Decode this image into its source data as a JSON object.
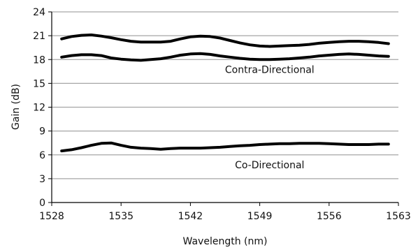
{
  "chart_data": {
    "type": "line",
    "title": "",
    "xlabel": "Wavelength (nm)",
    "ylabel": "Gain (dB)",
    "xlim": [
      1528,
      1563
    ],
    "ylim": [
      0,
      24
    ],
    "xticks": [
      1528,
      1535,
      1542,
      1549,
      1556,
      1563
    ],
    "yticks": [
      0,
      3,
      6,
      9,
      12,
      15,
      18,
      21,
      24
    ],
    "grid": "horizontal",
    "legend": "none",
    "colors": {
      "series": "#000000",
      "grid": "#a6a6a6",
      "axis": "#000000"
    },
    "annotations": [
      {
        "text": "Contra-Directional",
        "x": 1550,
        "y": 16.3
      },
      {
        "text": "Co-Directional",
        "x": 1550,
        "y": 4.3
      }
    ],
    "series": [
      {
        "x": [
          1529.0,
          1530.0,
          1531.0,
          1532.0,
          1533.0,
          1534.0,
          1535.0,
          1536.0,
          1537.0,
          1538.0,
          1539.0,
          1540.0,
          1541.0,
          1542.0,
          1543.0,
          1544.0,
          1545.0,
          1546.0,
          1547.0,
          1548.0,
          1549.0,
          1550.0,
          1551.0,
          1552.0,
          1553.0,
          1554.0,
          1555.0,
          1556.0,
          1557.0,
          1558.0,
          1559.0,
          1560.0,
          1561.0,
          1562.0
        ],
        "y": [
          20.6,
          20.9,
          21.05,
          21.1,
          20.95,
          20.75,
          20.5,
          20.3,
          20.2,
          20.2,
          20.2,
          20.3,
          20.6,
          20.85,
          20.95,
          20.9,
          20.7,
          20.4,
          20.1,
          19.85,
          19.7,
          19.65,
          19.7,
          19.75,
          19.8,
          19.9,
          20.05,
          20.15,
          20.25,
          20.3,
          20.3,
          20.25,
          20.15,
          20.0
        ]
      },
      {
        "x": [
          1529.0,
          1530.0,
          1531.0,
          1532.0,
          1533.0,
          1534.0,
          1535.0,
          1536.0,
          1537.0,
          1538.0,
          1539.0,
          1540.0,
          1541.0,
          1542.0,
          1543.0,
          1544.0,
          1545.0,
          1546.0,
          1547.0,
          1548.0,
          1549.0,
          1550.0,
          1551.0,
          1552.0,
          1553.0,
          1554.0,
          1555.0,
          1556.0,
          1557.0,
          1558.0,
          1559.0,
          1560.0,
          1561.0,
          1562.0
        ],
        "y": [
          18.3,
          18.5,
          18.6,
          18.6,
          18.5,
          18.2,
          18.05,
          17.95,
          17.9,
          18.0,
          18.1,
          18.3,
          18.55,
          18.7,
          18.75,
          18.65,
          18.45,
          18.3,
          18.15,
          18.05,
          18.0,
          18.0,
          18.05,
          18.1,
          18.2,
          18.3,
          18.45,
          18.55,
          18.65,
          18.7,
          18.65,
          18.55,
          18.45,
          18.4
        ]
      },
      {
        "x": [
          1529.0,
          1530.0,
          1531.0,
          1532.0,
          1533.0,
          1534.0,
          1535.0,
          1536.0,
          1537.0,
          1538.0,
          1539.0,
          1540.0,
          1541.0,
          1542.0,
          1543.0,
          1544.0,
          1545.0,
          1546.0,
          1547.0,
          1548.0,
          1549.0,
          1550.0,
          1551.0,
          1552.0,
          1553.0,
          1554.0,
          1555.0,
          1556.0,
          1557.0,
          1558.0,
          1559.0,
          1560.0,
          1561.0,
          1562.0
        ],
        "y": [
          6.5,
          6.65,
          6.9,
          7.2,
          7.45,
          7.5,
          7.2,
          6.95,
          6.85,
          6.8,
          6.7,
          6.8,
          6.85,
          6.85,
          6.85,
          6.9,
          6.95,
          7.05,
          7.15,
          7.2,
          7.3,
          7.35,
          7.4,
          7.4,
          7.45,
          7.45,
          7.45,
          7.4,
          7.35,
          7.3,
          7.3,
          7.3,
          7.35,
          7.35
        ]
      }
    ]
  }
}
